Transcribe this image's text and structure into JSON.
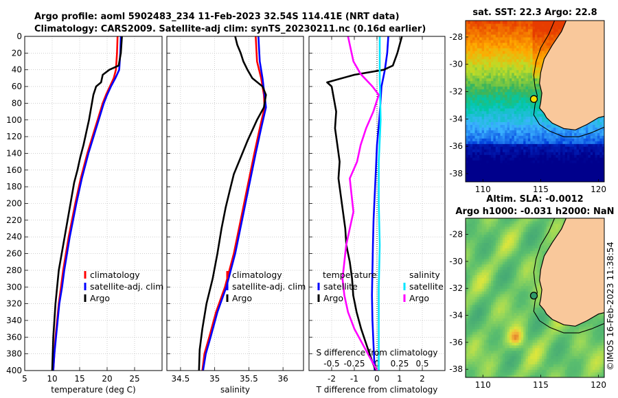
{
  "header": {
    "title_line1": "Argo profile: aoml 5902483_234 11-Feb-2023 32.54S 114.41E (NRT data)",
    "title_line2": "Climatology: CARS2009. Satellite-adj clim: synTS_20230211.nc (0.16d earlier)"
  },
  "colors": {
    "climatology": "#ff0000",
    "satellite": "#0000ff",
    "argo": "#000000",
    "s_satellite": "#00e5ff",
    "s_argo": "#ff00ff",
    "land": "#f9c89b",
    "grid": "#b0b0b0"
  },
  "chart_data": [
    {
      "id": "temperature",
      "type": "line",
      "xlabel": "temperature (deg C)",
      "ylabel": "",
      "xlim": [
        5,
        30
      ],
      "ylim": [
        400,
        0
      ],
      "xticks": [
        5,
        10,
        15,
        20,
        25
      ],
      "yticks": [
        0,
        20,
        40,
        60,
        80,
        100,
        120,
        140,
        160,
        180,
        200,
        220,
        240,
        260,
        280,
        300,
        320,
        340,
        360,
        380,
        400
      ],
      "legend": [
        "climatology",
        "satellite-adj. clim",
        "Argo"
      ],
      "series": [
        {
          "name": "climatology",
          "color": "#ff0000",
          "points": [
            [
              21.9,
              0
            ],
            [
              21.8,
              20
            ],
            [
              21.6,
              40
            ],
            [
              21.2,
              50
            ],
            [
              20.5,
              60
            ],
            [
              19.8,
              70
            ],
            [
              19.2,
              80
            ],
            [
              18.5,
              95
            ],
            [
              17.8,
              110
            ],
            [
              17.1,
              125
            ],
            [
              16.4,
              140
            ],
            [
              15.8,
              155
            ],
            [
              15.2,
              170
            ],
            [
              14.7,
              185
            ],
            [
              14.2,
              200
            ],
            [
              13.6,
              220
            ],
            [
              13.0,
              240
            ],
            [
              12.5,
              260
            ],
            [
              12.0,
              280
            ],
            [
              11.6,
              300
            ],
            [
              11.2,
              320
            ],
            [
              10.9,
              340
            ],
            [
              10.6,
              360
            ],
            [
              10.4,
              380
            ],
            [
              10.2,
              400
            ]
          ]
        },
        {
          "name": "satellite-adj. clim",
          "color": "#0000ff",
          "points": [
            [
              22.5,
              0
            ],
            [
              22.4,
              20
            ],
            [
              22.2,
              40
            ],
            [
              21.5,
              50
            ],
            [
              20.7,
              60
            ],
            [
              20.0,
              70
            ],
            [
              19.4,
              80
            ],
            [
              18.7,
              95
            ],
            [
              18.0,
              110
            ],
            [
              17.3,
              125
            ],
            [
              16.6,
              140
            ],
            [
              16.0,
              155
            ],
            [
              15.4,
              170
            ],
            [
              14.9,
              185
            ],
            [
              14.4,
              200
            ],
            [
              13.8,
              220
            ],
            [
              13.2,
              240
            ],
            [
              12.7,
              260
            ],
            [
              12.2,
              280
            ],
            [
              11.8,
              300
            ],
            [
              11.3,
              320
            ],
            [
              11.0,
              340
            ],
            [
              10.7,
              360
            ],
            [
              10.4,
              380
            ],
            [
              10.2,
              400
            ]
          ]
        },
        {
          "name": "Argo",
          "color": "#000000",
          "points": [
            [
              22.7,
              0
            ],
            [
              22.5,
              20
            ],
            [
              22.1,
              35
            ],
            [
              20.4,
              40
            ],
            [
              19.2,
              46
            ],
            [
              18.9,
              55
            ],
            [
              18.0,
              60
            ],
            [
              17.5,
              70
            ],
            [
              17.1,
              85
            ],
            [
              16.7,
              100
            ],
            [
              16.2,
              115
            ],
            [
              15.7,
              130
            ],
            [
              15.1,
              145
            ],
            [
              14.6,
              160
            ],
            [
              14.0,
              175
            ],
            [
              13.6,
              190
            ],
            [
              13.2,
              205
            ],
            [
              12.8,
              220
            ],
            [
              12.4,
              235
            ],
            [
              12.0,
              250
            ],
            [
              11.6,
              265
            ],
            [
              11.2,
              280
            ],
            [
              10.9,
              300
            ],
            [
              10.6,
              320
            ],
            [
              10.4,
              340
            ],
            [
              10.2,
              360
            ],
            [
              10.1,
              380
            ],
            [
              10.0,
              400
            ]
          ]
        }
      ]
    },
    {
      "id": "salinity",
      "type": "line",
      "xlabel": "salinity",
      "ylabel": "",
      "xlim": [
        34.3,
        36.3
      ],
      "ylim": [
        400,
        0
      ],
      "xticks": [
        34.5,
        35,
        35.5,
        36
      ],
      "yticks": [
        0,
        20,
        40,
        60,
        80,
        100,
        120,
        140,
        160,
        180,
        200,
        220,
        240,
        260,
        280,
        300,
        320,
        340,
        360,
        380,
        400
      ],
      "legend": [
        "climatology",
        "satellite-adj. clim",
        "Argo"
      ],
      "series": [
        {
          "name": "climatology",
          "color": "#ff0000",
          "points": [
            [
              35.6,
              0
            ],
            [
              35.62,
              30
            ],
            [
              35.68,
              50
            ],
            [
              35.72,
              70
            ],
            [
              35.73,
              85
            ],
            [
              35.66,
              110
            ],
            [
              35.58,
              140
            ],
            [
              35.48,
              180
            ],
            [
              35.38,
              220
            ],
            [
              35.28,
              260
            ],
            [
              35.15,
              300
            ],
            [
              35.02,
              330
            ],
            [
              34.92,
              360
            ],
            [
              34.85,
              380
            ],
            [
              34.82,
              400
            ]
          ]
        },
        {
          "name": "satellite-adj. clim",
          "color": "#0000ff",
          "points": [
            [
              35.64,
              0
            ],
            [
              35.66,
              30
            ],
            [
              35.7,
              50
            ],
            [
              35.73,
              70
            ],
            [
              35.75,
              85
            ],
            [
              35.68,
              110
            ],
            [
              35.6,
              140
            ],
            [
              35.5,
              180
            ],
            [
              35.4,
              220
            ],
            [
              35.3,
              260
            ],
            [
              35.17,
              300
            ],
            [
              35.04,
              330
            ],
            [
              34.94,
              360
            ],
            [
              34.87,
              380
            ],
            [
              34.83,
              400
            ]
          ]
        },
        {
          "name": "Argo",
          "color": "#000000",
          "points": [
            [
              35.3,
              0
            ],
            [
              35.33,
              10
            ],
            [
              35.38,
              20
            ],
            [
              35.42,
              30
            ],
            [
              35.48,
              40
            ],
            [
              35.55,
              50
            ],
            [
              35.7,
              60
            ],
            [
              35.75,
              70
            ],
            [
              35.72,
              85
            ],
            [
              35.62,
              100
            ],
            [
              35.48,
              125
            ],
            [
              35.38,
              145
            ],
            [
              35.28,
              165
            ],
            [
              35.22,
              185
            ],
            [
              35.16,
              205
            ],
            [
              35.1,
              230
            ],
            [
              35.04,
              260
            ],
            [
              34.97,
              290
            ],
            [
              34.88,
              320
            ],
            [
              34.82,
              350
            ],
            [
              34.78,
              375
            ],
            [
              34.77,
              400
            ]
          ]
        }
      ]
    },
    {
      "id": "difference",
      "type": "line",
      "xlabel": "T difference from climatology",
      "top_axis_label": "S difference from climatology",
      "xlim": [
        -3,
        3
      ],
      "ylim": [
        400,
        0
      ],
      "xticks": [
        -2,
        -1,
        0,
        1,
        2
      ],
      "top_ticks": [
        "-0.5",
        "-0.25",
        "0",
        "0.25",
        "0.5"
      ],
      "top_tick_values": [
        -0.5,
        -0.25,
        0,
        0.25,
        0.5
      ],
      "yticks": [
        0,
        20,
        40,
        60,
        80,
        100,
        120,
        140,
        160,
        180,
        200,
        220,
        240,
        260,
        280,
        300,
        320,
        340,
        360,
        380,
        400
      ],
      "legend_temperature_title": "temperature",
      "legend_temperature": [
        "satellite",
        "Argo"
      ],
      "legend_salinity_title": "salinity",
      "legend_salinity": [
        "satellite",
        "Argo"
      ],
      "series": [
        {
          "name": "T satellite",
          "color": "#0000ff",
          "points": [
            [
              0.5,
              0
            ],
            [
              0.45,
              20
            ],
            [
              0.35,
              40
            ],
            [
              0.2,
              60
            ],
            [
              0.15,
              80
            ],
            [
              0.1,
              100
            ],
            [
              0.0,
              130
            ],
            [
              -0.05,
              160
            ],
            [
              -0.1,
              190
            ],
            [
              -0.15,
              220
            ],
            [
              -0.18,
              250
            ],
            [
              -0.2,
              280
            ],
            [
              -0.22,
              310
            ],
            [
              -0.2,
              340
            ],
            [
              -0.15,
              370
            ],
            [
              -0.1,
              400
            ]
          ]
        },
        {
          "name": "T Argo",
          "color": "#000000",
          "points": [
            [
              1.1,
              0
            ],
            [
              0.9,
              20
            ],
            [
              0.7,
              35
            ],
            [
              0.3,
              40
            ],
            [
              -1.0,
              46
            ],
            [
              -2.2,
              55
            ],
            [
              -2.0,
              60
            ],
            [
              -1.9,
              75
            ],
            [
              -1.8,
              90
            ],
            [
              -1.85,
              110
            ],
            [
              -1.75,
              130
            ],
            [
              -1.65,
              150
            ],
            [
              -1.7,
              170
            ],
            [
              -1.6,
              190
            ],
            [
              -1.5,
              210
            ],
            [
              -1.4,
              230
            ],
            [
              -1.35,
              250
            ],
            [
              -1.2,
              270
            ],
            [
              -1.1,
              290
            ],
            [
              -1.05,
              310
            ],
            [
              -0.9,
              330
            ],
            [
              -0.7,
              350
            ],
            [
              -0.45,
              370
            ],
            [
              -0.2,
              390
            ],
            [
              -0.05,
              400
            ]
          ]
        },
        {
          "name": "S satellite",
          "color": "#00e5ff",
          "points": [
            [
              0.03,
              0
            ],
            [
              0.03,
              50
            ],
            [
              0.04,
              100
            ],
            [
              0.02,
              150
            ],
            [
              0.02,
              200
            ],
            [
              0.03,
              250
            ],
            [
              0.02,
              300
            ],
            [
              0.02,
              350
            ],
            [
              0.02,
              400
            ]
          ]
        },
        {
          "name": "S Argo",
          "color": "#ff00ff",
          "points": [
            [
              -0.32,
              0
            ],
            [
              -0.26,
              30
            ],
            [
              -0.18,
              45
            ],
            [
              -0.05,
              60
            ],
            [
              0.02,
              70
            ],
            [
              -0.04,
              90
            ],
            [
              -0.12,
              110
            ],
            [
              -0.18,
              130
            ],
            [
              -0.22,
              150
            ],
            [
              -0.3,
              170
            ],
            [
              -0.28,
              190
            ],
            [
              -0.26,
              210
            ],
            [
              -0.3,
              230
            ],
            [
              -0.34,
              250
            ],
            [
              -0.36,
              270
            ],
            [
              -0.38,
              290
            ],
            [
              -0.36,
              310
            ],
            [
              -0.32,
              330
            ],
            [
              -0.25,
              350
            ],
            [
              -0.15,
              370
            ],
            [
              -0.05,
              390
            ],
            [
              0.0,
              400
            ]
          ]
        }
      ]
    },
    {
      "id": "sst_map",
      "type": "heatmap",
      "title": "sat. SST: 22.3 Argo: 22.8",
      "xlim": [
        108.5,
        120.5
      ],
      "ylim": [
        -38.6,
        -26.8
      ],
      "xticks": [
        110,
        115,
        120
      ],
      "yticks": [
        -28,
        -30,
        -32,
        -34,
        -36,
        -38
      ],
      "argo_position": {
        "lon": 114.41,
        "lat": -32.54
      }
    },
    {
      "id": "sla_map",
      "type": "heatmap",
      "title_line1": "Altim. SLA: -0.0012",
      "title_line2": "Argo h1000: -0.031 h2000: NaN",
      "xlim": [
        108.5,
        120.5
      ],
      "ylim": [
        -38.6,
        -26.8
      ],
      "xticks": [
        110,
        115,
        120
      ],
      "yticks": [
        -28,
        -30,
        -32,
        -34,
        -36,
        -38
      ],
      "argo_position": {
        "lon": 114.41,
        "lat": -32.54
      }
    }
  ],
  "footer": {
    "credit": "©IMOS 16-Feb-2023 11:38:54"
  }
}
